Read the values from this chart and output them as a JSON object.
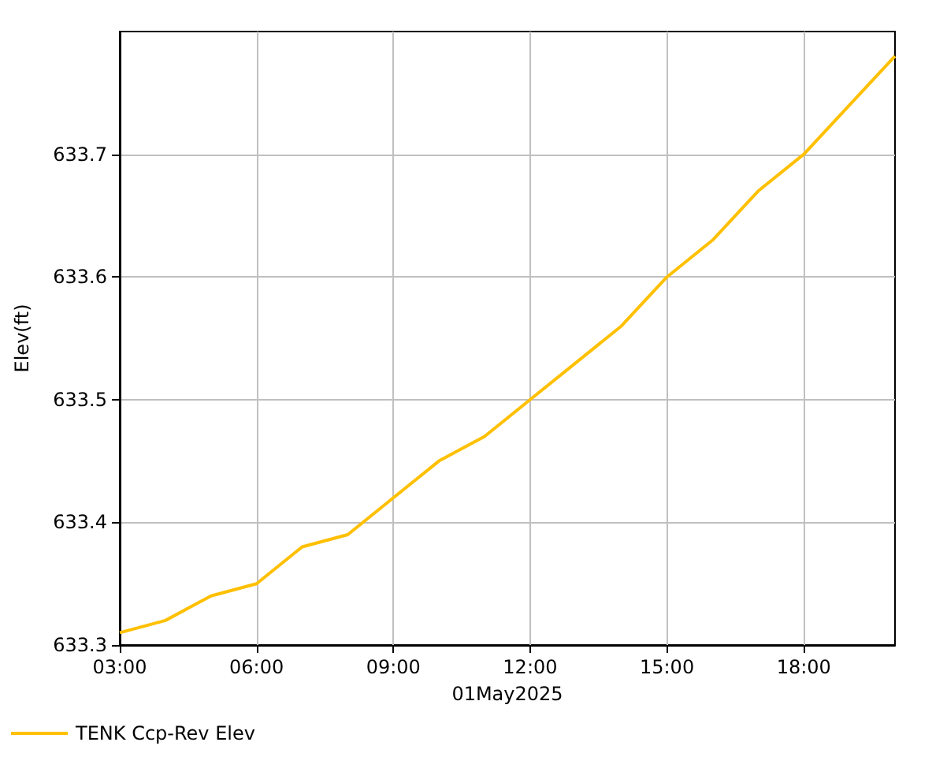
{
  "chart_data": {
    "type": "line",
    "xlabel": "01May2025",
    "ylabel": "Elev(ft)",
    "x": [
      3,
      4,
      5,
      6,
      7,
      8,
      9,
      10,
      11,
      12,
      13,
      14,
      15,
      16,
      17,
      18,
      19,
      20
    ],
    "series": [
      {
        "name": "TENK Ccp-Rev Elev",
        "color": "#ffc000",
        "values": [
          633.31,
          633.32,
          633.34,
          633.35,
          633.38,
          633.39,
          633.42,
          633.45,
          633.47,
          633.5,
          633.53,
          633.56,
          633.6,
          633.63,
          633.67,
          633.7,
          633.74,
          633.78
        ]
      }
    ],
    "xlim": [
      3,
      20
    ],
    "xticks": [
      {
        "value": 3,
        "label": "03:00"
      },
      {
        "value": 6,
        "label": "06:00"
      },
      {
        "value": 9,
        "label": "09:00"
      },
      {
        "value": 12,
        "label": "12:00"
      },
      {
        "value": 15,
        "label": "15:00"
      },
      {
        "value": 18,
        "label": "18:00"
      }
    ],
    "ylim": [
      633.3,
      633.8
    ],
    "yticks": [
      633.3,
      633.4,
      633.5,
      633.6,
      633.7
    ],
    "grid": true,
    "legend": "bottom left",
    "marker": "none",
    "line_style": "solid"
  }
}
